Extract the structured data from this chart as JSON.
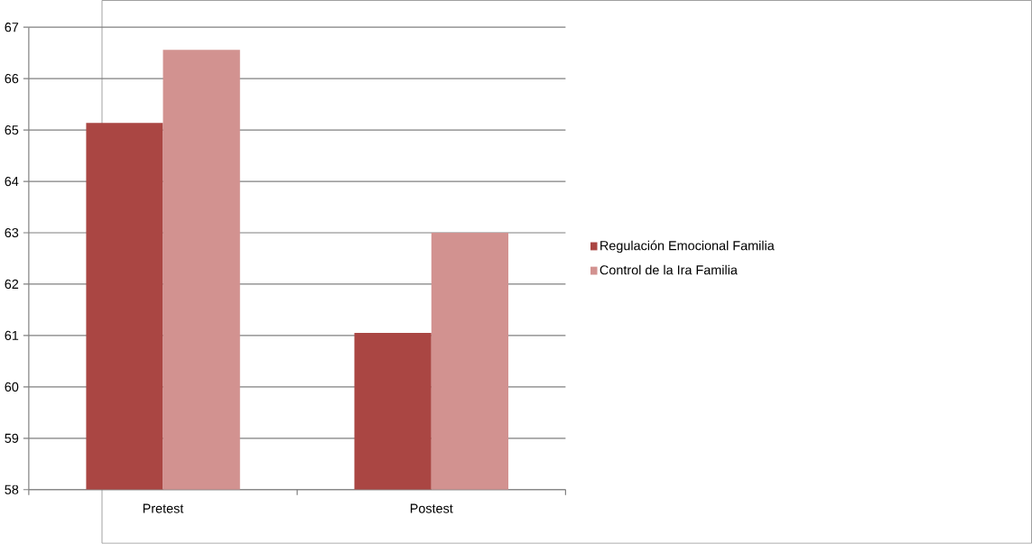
{
  "chart_data": {
    "type": "bar",
    "categories": [
      "Pretest",
      "Postest"
    ],
    "series": [
      {
        "name": "Regulación Emocional Familia",
        "color": "#aa4643",
        "values": [
          65.14,
          61.05
        ]
      },
      {
        "name": "Control de la Ira Familia",
        "color": "#d29290",
        "values": [
          66.56,
          63.0
        ]
      }
    ],
    "ylim": [
      58,
      67
    ],
    "yticks": [
      58,
      59,
      60,
      61,
      62,
      63,
      64,
      65,
      66,
      67
    ],
    "grid": "y",
    "legend": "right"
  }
}
